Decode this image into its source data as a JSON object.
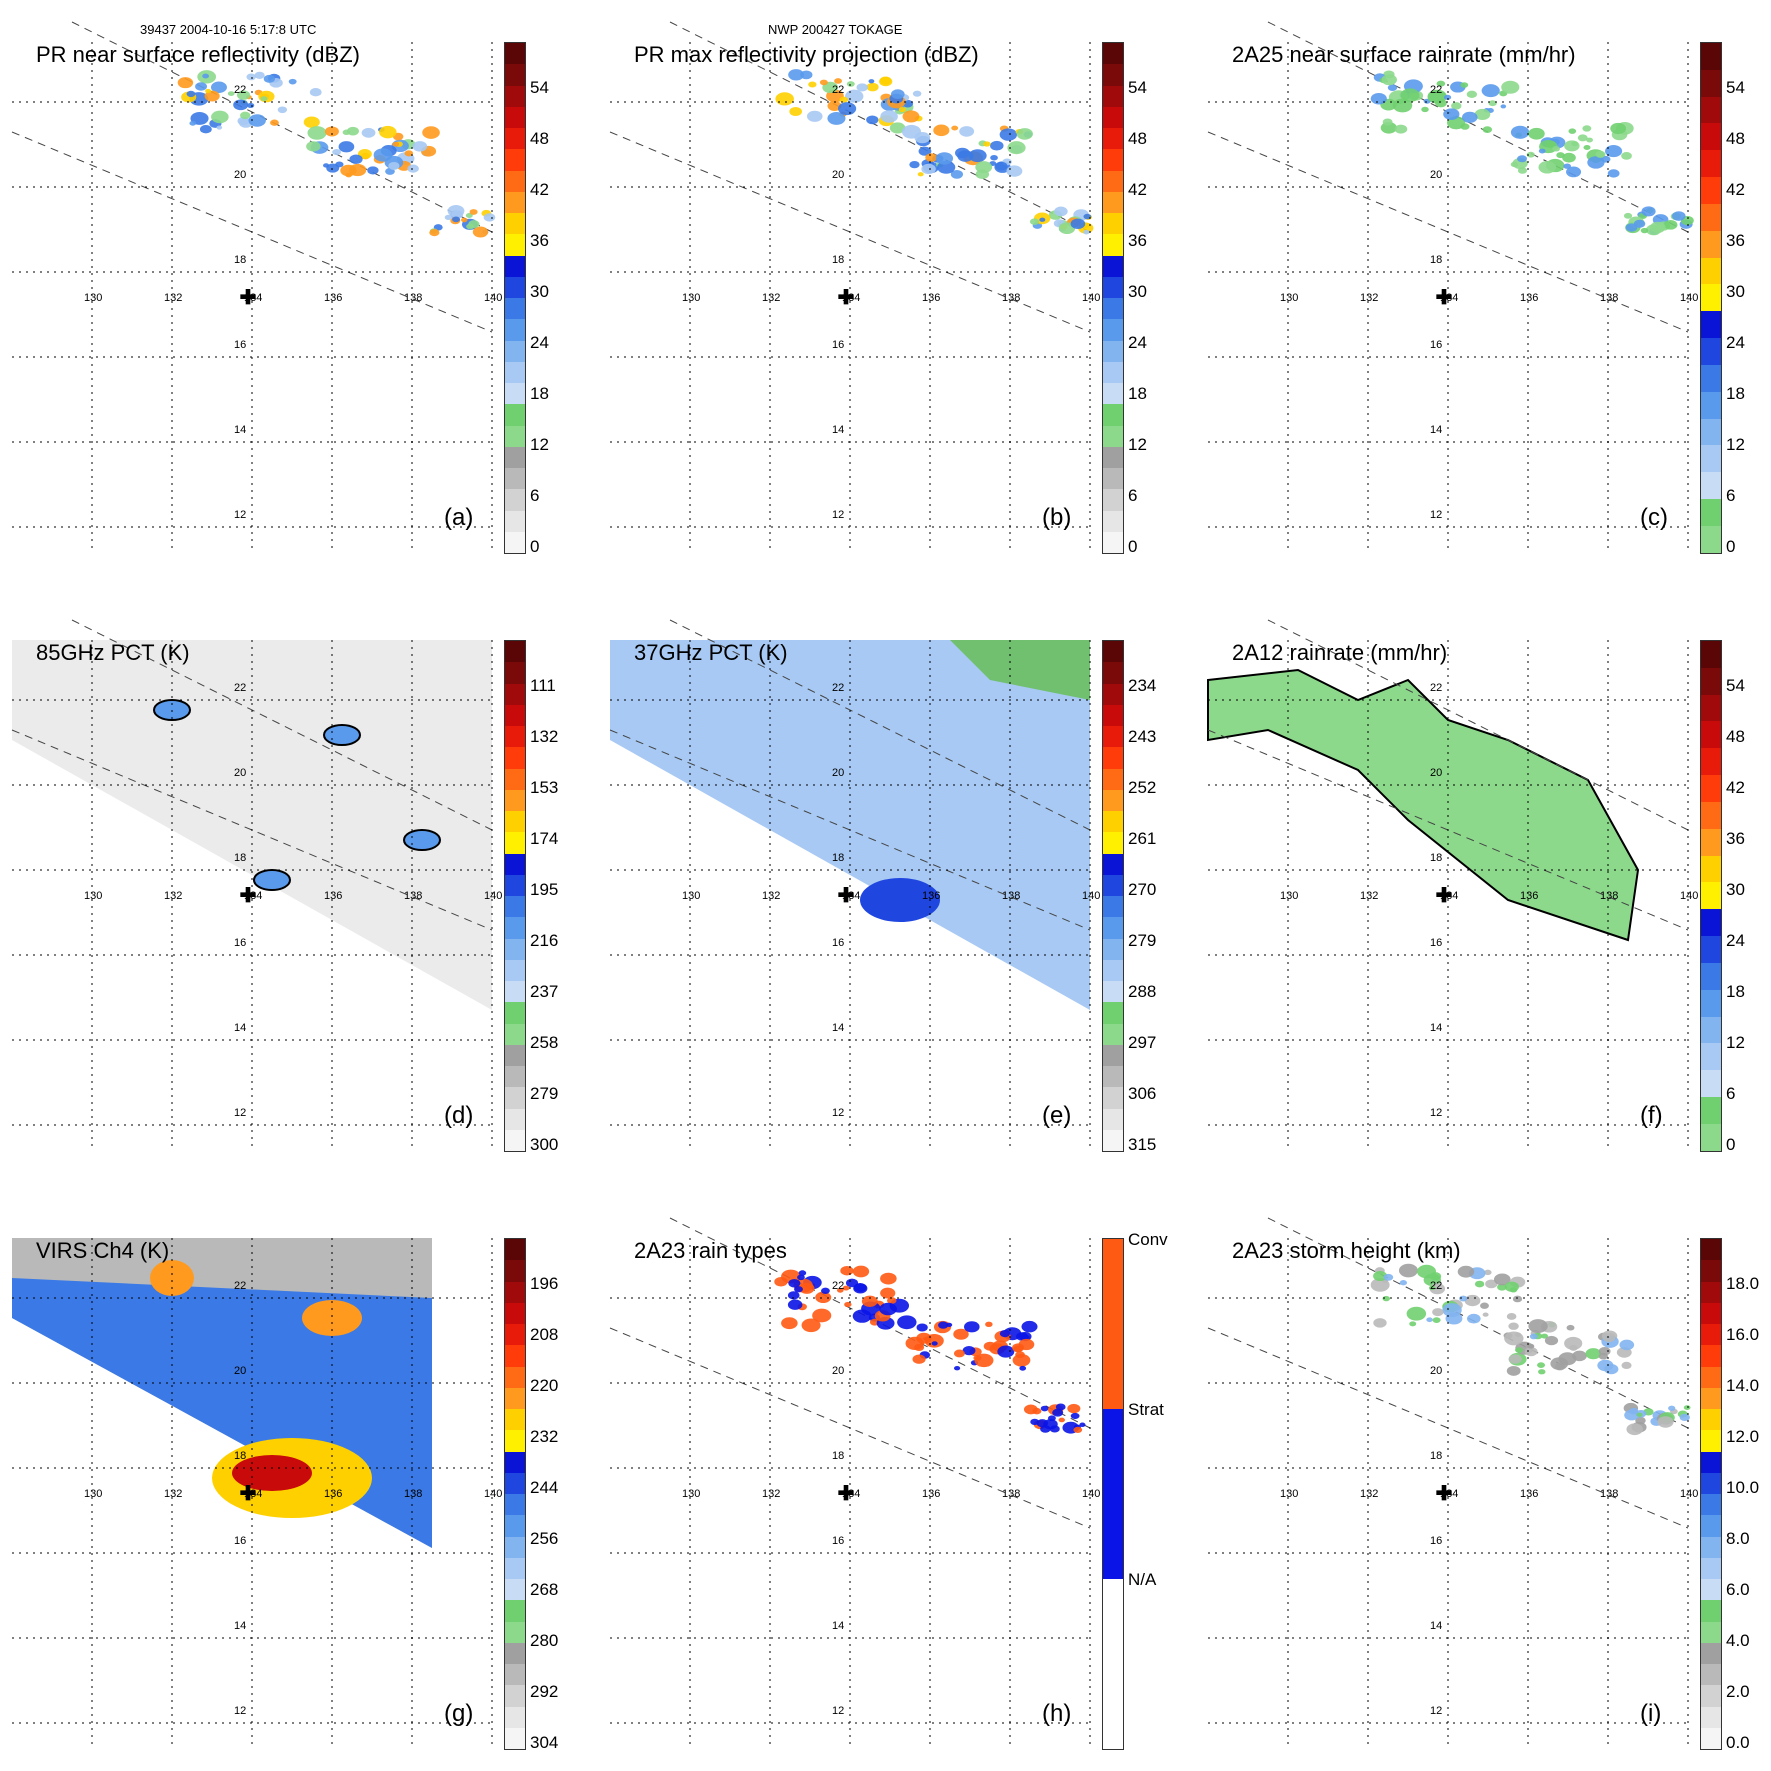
{
  "header": {
    "left": "39437 2004-10-16 5:17:8 UTC",
    "center": "NWP 200427 TOKAGE"
  },
  "axes": {
    "lon_labels": [
      "130",
      "132",
      "134",
      "136",
      "138",
      "140"
    ],
    "lat_labels": [
      "22",
      "20",
      "18",
      "16",
      "14",
      "12"
    ]
  },
  "colors": {
    "dbz": [
      "#f5f5f5",
      "#e6e6e6",
      "#d2d2d2",
      "#b9b9b9",
      "#a0a0a0",
      "#8cd98c",
      "#70d070",
      "#c8dcf5",
      "#a7c9f3",
      "#82b4ef",
      "#5a9aec",
      "#3b7ae6",
      "#2046e0",
      "#0a14d6",
      "#fff000",
      "#ffd000",
      "#ff9a1e",
      "#ff6a14",
      "#ff3c0a",
      "#e81a0a",
      "#c80a0a",
      "#a00a0a",
      "#7a0a0a",
      "#5a0606"
    ],
    "rain_types": {
      "conv": "#ff5a14",
      "strat": "#0a14e6",
      "na": "#ffffff"
    }
  },
  "panels": [
    {
      "id": "a",
      "title": "PR near surface reflectivity (dBZ)",
      "label": "(a)",
      "scale": [
        "54",
        "48",
        "42",
        "36",
        "30",
        "24",
        "18",
        "12",
        "6",
        "0"
      ],
      "bar": "dbz"
    },
    {
      "id": "b",
      "title": "PR max reflectivity projection (dBZ)",
      "label": "(b)",
      "scale": [
        "54",
        "48",
        "42",
        "36",
        "30",
        "24",
        "18",
        "12",
        "6",
        "0"
      ],
      "bar": "dbz"
    },
    {
      "id": "c",
      "title": "2A25 near surface rainrate (mm/hr)",
      "label": "(c)",
      "scale": [
        "54",
        "48",
        "42",
        "36",
        "30",
        "24",
        "18",
        "12",
        "6",
        "0"
      ],
      "bar": "rain"
    },
    {
      "id": "d",
      "title": "85GHz PCT (K)",
      "label": "(d)",
      "scale": [
        "111",
        "132",
        "153",
        "174",
        "195",
        "216",
        "237",
        "258",
        "279",
        "300"
      ],
      "bar": "dbz"
    },
    {
      "id": "e",
      "title": "37GHz PCT (K)",
      "label": "(e)",
      "scale": [
        "234",
        "243",
        "252",
        "261",
        "270",
        "279",
        "288",
        "297",
        "306",
        "315"
      ],
      "bar": "dbz"
    },
    {
      "id": "f",
      "title": "2A12 rainrate (mm/hr)",
      "label": "(f)",
      "scale": [
        "54",
        "48",
        "42",
        "36",
        "30",
        "24",
        "18",
        "12",
        "6",
        "0"
      ],
      "bar": "rain"
    },
    {
      "id": "g",
      "title": "VIRS Ch4 (K)",
      "label": "(g)",
      "scale": [
        "196",
        "208",
        "220",
        "232",
        "244",
        "256",
        "268",
        "280",
        "292",
        "304"
      ],
      "bar": "dbz"
    },
    {
      "id": "h",
      "title": "2A23 rain types",
      "label": "(h)",
      "scale": [
        "Conv",
        "Strat",
        "N/A"
      ],
      "bar": "types"
    },
    {
      "id": "i",
      "title": "2A23 storm height (km)",
      "label": "(i)",
      "scale": [
        "18.0",
        "16.0",
        "14.0",
        "12.0",
        "10.0",
        "8.0",
        "6.0",
        "4.0",
        "2.0",
        "0.0"
      ],
      "bar": "dbz"
    }
  ]
}
